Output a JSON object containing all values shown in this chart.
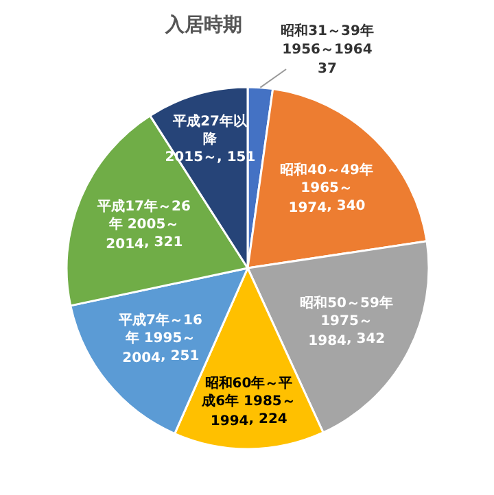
{
  "chart_data": {
    "type": "pie",
    "title": "入居時期",
    "categories": [
      "昭和31～39年 1956～1964",
      "昭和40～49年 1965～1974",
      "昭和50～59年 1975～1984",
      "昭和60年～平成6年 1985～1994",
      "平成7年～16年 1995～2004",
      "平成17年～26年 2005～2014",
      "平成27年以降 2015～"
    ],
    "values": [
      37,
      340,
      342,
      224,
      251,
      321,
      151
    ],
    "colors": [
      "#4472c4",
      "#ed7d31",
      "#a5a5a5",
      "#ffc000",
      "#5b9bd5",
      "#70ad47",
      "#264478"
    ],
    "value_labels": [
      "37",
      ", 340",
      ", 342",
      ", 224",
      ", 251",
      ", 321",
      ", 151"
    ]
  }
}
